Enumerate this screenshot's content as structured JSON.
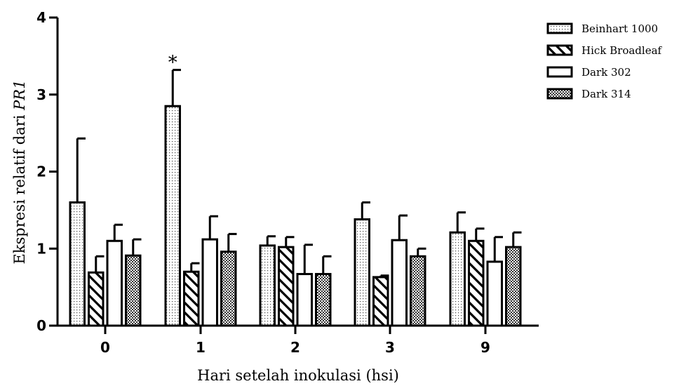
{
  "chart_data": {
    "type": "bar",
    "title": "",
    "xlabel": "Hari setelah inokulasi (hsi)",
    "ylabel_prefix": "Ekspresi relatif dari ",
    "ylabel_gene": "PR1",
    "categories": [
      "0",
      "1",
      "2",
      "3",
      "9"
    ],
    "ylim": [
      0,
      4
    ],
    "yticks": [
      "0",
      "1",
      "2",
      "3",
      "4"
    ],
    "grid": false,
    "legend_position": "top-right",
    "series": [
      {
        "name": "Beinhart 1000",
        "pattern": "dots",
        "values": [
          1.6,
          2.85,
          1.04,
          1.38,
          1.21
        ],
        "errors": [
          0.83,
          0.47,
          0.12,
          0.22,
          0.26
        ]
      },
      {
        "name": "Hick Broadleaf",
        "pattern": "hatch",
        "values": [
          0.69,
          0.7,
          1.02,
          0.63,
          1.1
        ],
        "errors": [
          0.21,
          0.11,
          0.13,
          0.02,
          0.16
        ]
      },
      {
        "name": "Dark 302",
        "pattern": "empty",
        "values": [
          1.1,
          1.12,
          0.67,
          1.11,
          0.83
        ],
        "errors": [
          0.21,
          0.3,
          0.38,
          0.32,
          0.32
        ]
      },
      {
        "name": "Dark 314",
        "pattern": "checker",
        "values": [
          0.91,
          0.96,
          0.67,
          0.9,
          1.02
        ],
        "errors": [
          0.21,
          0.23,
          0.23,
          0.1,
          0.19
        ]
      }
    ],
    "annotations": [
      {
        "text": "*",
        "category": "1",
        "series": "Beinhart 1000"
      }
    ]
  }
}
